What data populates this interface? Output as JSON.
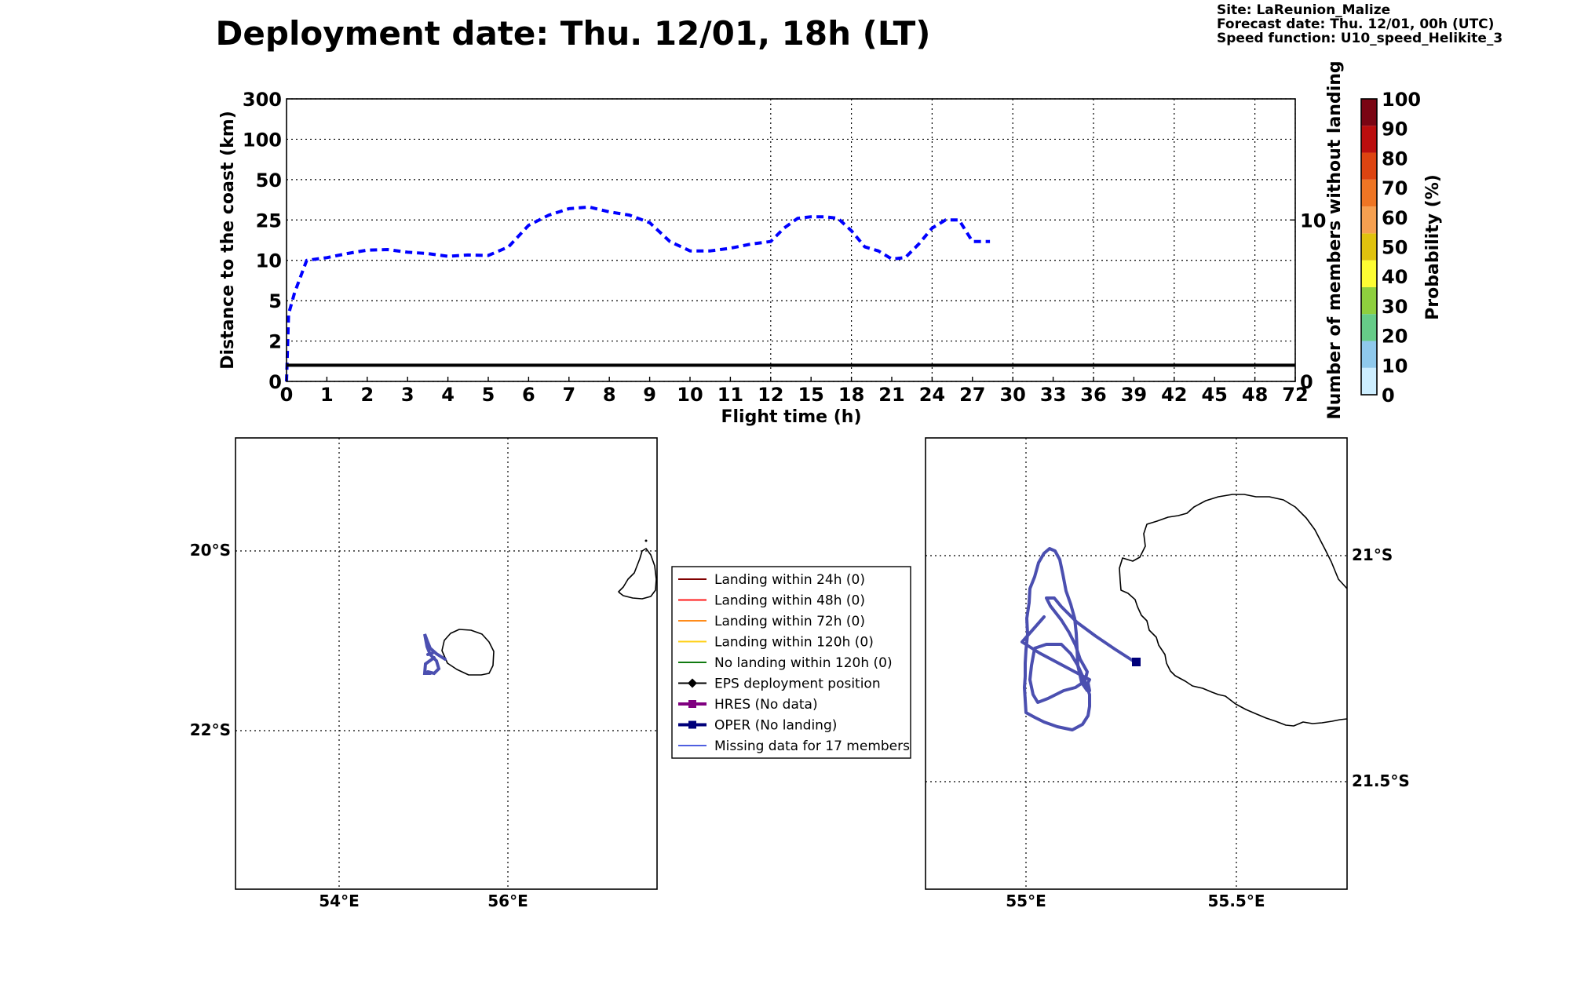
{
  "header": {
    "title": "Deployment date: Thu. 12/01, 18h (LT)",
    "site": "Site: LaReunion_Malize",
    "forecast": "Forecast date: Thu. 12/01, 00h (UTC)",
    "speed": "Speed function: U10_speed_Helikite_3"
  },
  "colors": {
    "distance_line": "#0000ff",
    "members_line": "#000000",
    "trajectory": "#4b4fb0",
    "oper_marker": "#00007a"
  },
  "chart_data": [
    {
      "type": "line",
      "xlabel": "Flight time (h)",
      "ylabel": "Distance to the coast (km)",
      "ylabel_right": "Number of members without landing",
      "x_ticks": [
        "0",
        "1",
        "2",
        "3",
        "4",
        "5",
        "6",
        "7",
        "8",
        "9",
        "10",
        "11",
        "12",
        "15",
        "18",
        "21",
        "24",
        "27",
        "30",
        "33",
        "36",
        "39",
        "42",
        "45",
        "48",
        "72"
      ],
      "y_ticks": [
        "0",
        "2",
        "5",
        "10",
        "25",
        "50",
        "100",
        "300"
      ],
      "y_right_ticks": [
        "0",
        "10"
      ],
      "grid": true,
      "series": [
        {
          "x": [
            0,
            0.05,
            0.2,
            0.5,
            1,
            1.5,
            2,
            2.5,
            3,
            3.5,
            4,
            4.5,
            5,
            5.5,
            6,
            6.5,
            7,
            7.5,
            8,
            8.5,
            9,
            9.5,
            10,
            10.5,
            11,
            11.5,
            12,
            13,
            14,
            15,
            16,
            17,
            18,
            19,
            20,
            21,
            22,
            23,
            24,
            25,
            26,
            27,
            28,
            28.3
          ],
          "y": [
            0,
            4,
            6,
            10,
            11,
            12.5,
            13.8,
            14,
            13,
            12.5,
            11.5,
            12,
            11.8,
            15,
            23,
            28,
            32,
            33,
            30,
            28,
            24,
            17,
            13.5,
            13.5,
            14.5,
            16,
            17,
            22,
            26,
            27,
            27,
            26,
            21,
            15,
            13.5,
            10.5,
            11,
            16,
            22,
            25,
            25,
            17,
            17,
            17
          ]
        },
        {
          "x": [
            0,
            72
          ],
          "y": [
            1,
            1
          ],
          "axis": "right"
        }
      ]
    },
    {
      "type": "map",
      "lon_ticks": [
        "54°E",
        "56°E"
      ],
      "lat_ticks": [
        "20°S",
        "22°S"
      ]
    },
    {
      "type": "map",
      "lon_ticks": [
        "55°E",
        "55.5°E"
      ],
      "lat_ticks": [
        "21°S",
        "21.5°S"
      ]
    }
  ],
  "colorbar": {
    "label": "Probability (%)",
    "ticks": [
      "0",
      "10",
      "20",
      "30",
      "40",
      "50",
      "60",
      "70",
      "80",
      "90",
      "100"
    ],
    "colors": [
      "#cdeeff",
      "#8fc9ec",
      "#66cc88",
      "#8ecf3e",
      "#fdfd33",
      "#e0c20e",
      "#f6a050",
      "#ee7524",
      "#dd4411",
      "#bb0e0e",
      "#7a0513"
    ]
  },
  "legend": {
    "items": [
      {
        "label": "Landing within 24h (0)",
        "color": "#800000",
        "marker": "none",
        "width": 2
      },
      {
        "label": "Landing within 48h (0)",
        "color": "#ff1a1a",
        "marker": "none",
        "width": 2
      },
      {
        "label": "Landing within 72h (0)",
        "color": "#ff8c1a",
        "marker": "none",
        "width": 2
      },
      {
        "label": "Landing within 120h (0)",
        "color": "#ffd11a",
        "marker": "none",
        "width": 2
      },
      {
        "label": "No landing within 120h (0)",
        "color": "#117a11",
        "marker": "none",
        "width": 2
      },
      {
        "label": "EPS deployment position",
        "color": "#000000",
        "marker": "diamond",
        "width": 2
      },
      {
        "label": "HRES (No data)",
        "color": "#800080",
        "marker": "square",
        "width": 4
      },
      {
        "label": "OPER (No landing)",
        "color": "#00007a",
        "marker": "square",
        "width": 4
      },
      {
        "label": "Missing data for 17 members",
        "color": "#4f5fe0",
        "marker": "none",
        "width": 2
      }
    ]
  }
}
